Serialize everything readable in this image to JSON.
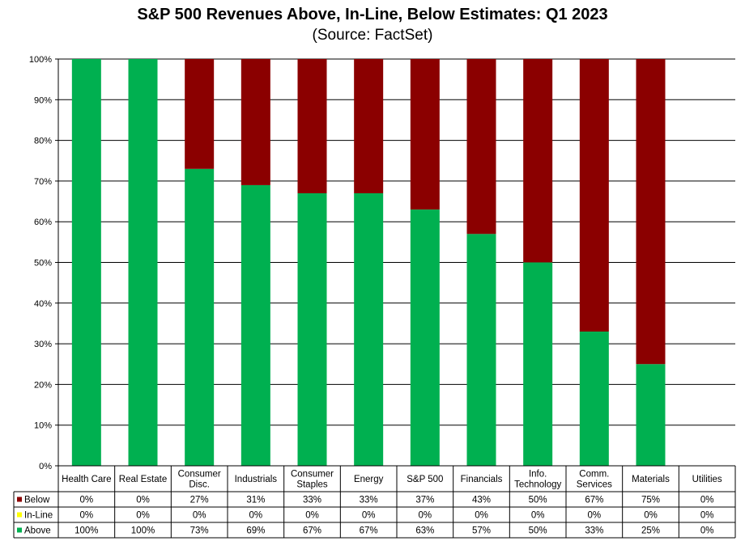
{
  "title": "S&P 500 Revenues Above, In-Line, Below Estimates: Q1 2023",
  "subtitle": "(Source: FactSet)",
  "colors": {
    "below": "#8b0000",
    "inline": "#ffff00",
    "above": "#00b050",
    "grid": "#000000"
  },
  "chart_data": {
    "type": "bar",
    "stacked": true,
    "percent": true,
    "title": "S&P 500 Revenues Above, In-Line, Below Estimates: Q1 2023",
    "subtitle": "(Source: FactSet)",
    "ylim": [
      0,
      100
    ],
    "y_ticks": [
      "0%",
      "10%",
      "20%",
      "30%",
      "40%",
      "50%",
      "60%",
      "70%",
      "80%",
      "90%",
      "100%"
    ],
    "grid": true,
    "legend_position": "data-table-left",
    "categories": [
      "Health Care",
      "Real Estate",
      "Consumer Disc.",
      "Industrials",
      "Consumer Staples",
      "Energy",
      "S&P 500",
      "Financials",
      "Info. Technology",
      "Comm. Services",
      "Materials",
      "Utilities"
    ],
    "category_lines": [
      [
        "Health Care"
      ],
      [
        "Real Estate"
      ],
      [
        "Consumer",
        "Disc."
      ],
      [
        "Industrials"
      ],
      [
        "Consumer",
        "Staples"
      ],
      [
        "Energy"
      ],
      [
        "S&P 500"
      ],
      [
        "Financials"
      ],
      [
        "Info.",
        "Technology"
      ],
      [
        "Comm.",
        "Services"
      ],
      [
        "Materials"
      ],
      [
        "Utilities"
      ]
    ],
    "series": [
      {
        "name": "Below",
        "values": [
          0,
          0,
          27,
          31,
          33,
          33,
          37,
          43,
          50,
          67,
          75,
          0
        ],
        "labels": [
          "0%",
          "0%",
          "27%",
          "31%",
          "33%",
          "33%",
          "37%",
          "43%",
          "50%",
          "67%",
          "75%",
          "0%"
        ]
      },
      {
        "name": "In-Line",
        "values": [
          0,
          0,
          0,
          0,
          0,
          0,
          0,
          0,
          0,
          0,
          0,
          0
        ],
        "labels": [
          "0%",
          "0%",
          "0%",
          "0%",
          "0%",
          "0%",
          "0%",
          "0%",
          "0%",
          "0%",
          "0%",
          "0%"
        ]
      },
      {
        "name": "Above",
        "values": [
          100,
          100,
          73,
          69,
          67,
          67,
          63,
          57,
          50,
          33,
          25,
          0
        ],
        "labels": [
          "100%",
          "100%",
          "73%",
          "69%",
          "67%",
          "67%",
          "63%",
          "57%",
          "50%",
          "33%",
          "25%",
          "0%"
        ]
      }
    ]
  }
}
